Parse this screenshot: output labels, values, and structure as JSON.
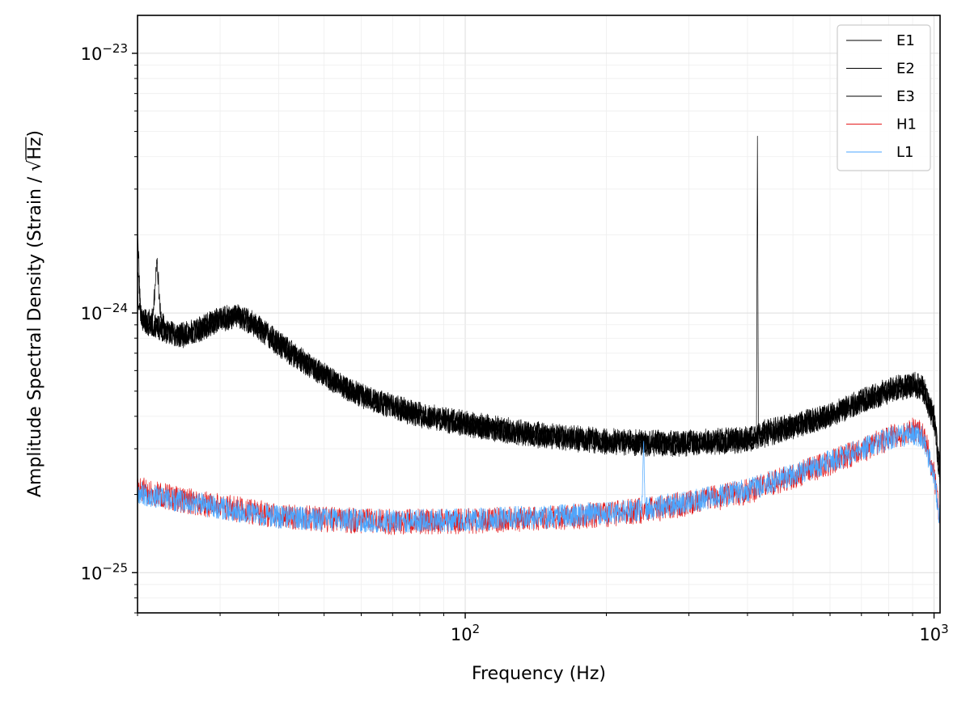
{
  "chart_data": {
    "type": "line",
    "title": "",
    "xlabel": "Frequency (Hz)",
    "ylabel": "Amplitude Spectral Density (Strain / √Hz)",
    "ylabel_parts": {
      "before": "Amplitude Spectral Density (Strain / ",
      "root": "√",
      "radicand": "Hz",
      "after": ")"
    },
    "x_scale": "log",
    "y_scale": "log",
    "xlim": [
      20,
      1030
    ],
    "ylim": [
      7e-26,
      1.4e-23
    ],
    "grid": true,
    "legend_position": "top-right",
    "x_ticks": [
      {
        "value": 100,
        "base": "10",
        "exp": "2"
      },
      {
        "value": 1000,
        "base": "10",
        "exp": "3"
      }
    ],
    "y_ticks": [
      {
        "value": 1e-25,
        "base": "10",
        "exp": "−25"
      },
      {
        "value": 1e-24,
        "base": "10",
        "exp": "−24"
      },
      {
        "value": 1e-23,
        "base": "10",
        "exp": "−23"
      }
    ],
    "series": [
      {
        "name": "E1",
        "color": "#000000",
        "jitter": 0.045,
        "seed": 11,
        "points": [
          [
            20,
            2.2e-24
          ],
          [
            20.3,
            1e-24
          ],
          [
            21,
            9.2e-25
          ],
          [
            21.6,
            1e-24
          ],
          [
            22,
            1.65e-24
          ],
          [
            22.4,
            9.5e-25
          ],
          [
            23,
            8.6e-25
          ],
          [
            25,
            8.3e-25
          ],
          [
            27,
            8.7e-25
          ],
          [
            30,
            9.6e-25
          ],
          [
            33,
            9.8e-25
          ],
          [
            36,
            9e-25
          ],
          [
            40,
            7.7e-25
          ],
          [
            45,
            6.6e-25
          ],
          [
            50,
            5.8e-25
          ],
          [
            60,
            4.85e-25
          ],
          [
            70,
            4.4e-25
          ],
          [
            80,
            4.1e-25
          ],
          [
            100,
            3.8e-25
          ],
          [
            120,
            3.6e-25
          ],
          [
            150,
            3.4e-25
          ],
          [
            200,
            3.25e-25
          ],
          [
            250,
            3.2e-25
          ],
          [
            300,
            3.2e-25
          ],
          [
            400,
            3.3e-25
          ],
          [
            418,
            3.35e-25
          ],
          [
            420,
            4.8e-24
          ],
          [
            422,
            3.5e-25
          ],
          [
            500,
            3.7e-25
          ],
          [
            600,
            4.1e-25
          ],
          [
            700,
            4.6e-25
          ],
          [
            800,
            5.1e-25
          ],
          [
            900,
            5.4e-25
          ],
          [
            950,
            5.2e-25
          ],
          [
            1000,
            4e-25
          ],
          [
            1030,
            2.5e-25
          ]
        ]
      },
      {
        "name": "E2",
        "color": "#000000",
        "jitter": 0.045,
        "seed": 23,
        "points": [
          [
            20,
            1.5e-24
          ],
          [
            20.4,
            9.5e-25
          ],
          [
            21,
            9e-25
          ],
          [
            22,
            8.9e-25
          ],
          [
            23,
            8.5e-25
          ],
          [
            25,
            8.2e-25
          ],
          [
            27,
            8.5e-25
          ],
          [
            30,
            9.4e-25
          ],
          [
            33,
            9.6e-25
          ],
          [
            36,
            8.9e-25
          ],
          [
            40,
            7.6e-25
          ],
          [
            45,
            6.5e-25
          ],
          [
            50,
            5.75e-25
          ],
          [
            60,
            4.8e-25
          ],
          [
            70,
            4.35e-25
          ],
          [
            80,
            4.05e-25
          ],
          [
            100,
            3.75e-25
          ],
          [
            120,
            3.55e-25
          ],
          [
            150,
            3.35e-25
          ],
          [
            200,
            3.2e-25
          ],
          [
            250,
            3.15e-25
          ],
          [
            300,
            3.15e-25
          ],
          [
            400,
            3.25e-25
          ],
          [
            500,
            3.65e-25
          ],
          [
            600,
            4.05e-25
          ],
          [
            700,
            4.55e-25
          ],
          [
            800,
            5e-25
          ],
          [
            900,
            5.3e-25
          ],
          [
            950,
            5.1e-25
          ],
          [
            1000,
            3.9e-25
          ],
          [
            1030,
            2.4e-25
          ]
        ]
      },
      {
        "name": "E3",
        "color": "#000000",
        "jitter": 0.045,
        "seed": 37,
        "points": [
          [
            20,
            1.2e-24
          ],
          [
            20.4,
            9.6e-25
          ],
          [
            21,
            9.1e-25
          ],
          [
            22,
            8.7e-25
          ],
          [
            23,
            8.4e-25
          ],
          [
            25,
            8.1e-25
          ],
          [
            27,
            8.6e-25
          ],
          [
            30,
            9.5e-25
          ],
          [
            33,
            9.7e-25
          ],
          [
            36,
            8.8e-25
          ],
          [
            40,
            7.5e-25
          ],
          [
            45,
            6.45e-25
          ],
          [
            50,
            5.7e-25
          ],
          [
            60,
            4.75e-25
          ],
          [
            70,
            4.3e-25
          ],
          [
            80,
            4e-25
          ],
          [
            100,
            3.7e-25
          ],
          [
            120,
            3.5e-25
          ],
          [
            150,
            3.3e-25
          ],
          [
            200,
            3.15e-25
          ],
          [
            250,
            3.1e-25
          ],
          [
            300,
            3.1e-25
          ],
          [
            400,
            3.2e-25
          ],
          [
            500,
            3.6e-25
          ],
          [
            600,
            4e-25
          ],
          [
            700,
            4.5e-25
          ],
          [
            800,
            4.95e-25
          ],
          [
            900,
            5.25e-25
          ],
          [
            950,
            5e-25
          ],
          [
            1000,
            3.8e-25
          ],
          [
            1030,
            2.3e-25
          ]
        ]
      },
      {
        "name": "H1",
        "color": "#e41a1c",
        "jitter": 0.05,
        "seed": 51,
        "points": [
          [
            20,
            2.1e-25
          ],
          [
            22,
            2e-25
          ],
          [
            25,
            1.9e-25
          ],
          [
            30,
            1.8e-25
          ],
          [
            40,
            1.65e-25
          ],
          [
            50,
            1.6e-25
          ],
          [
            70,
            1.57e-25
          ],
          [
            100,
            1.58e-25
          ],
          [
            150,
            1.62e-25
          ],
          [
            200,
            1.68e-25
          ],
          [
            250,
            1.75e-25
          ],
          [
            300,
            1.85e-25
          ],
          [
            400,
            2.05e-25
          ],
          [
            500,
            2.35e-25
          ],
          [
            600,
            2.65e-25
          ],
          [
            700,
            2.95e-25
          ],
          [
            800,
            3.3e-25
          ],
          [
            900,
            3.55e-25
          ],
          [
            950,
            3.4e-25
          ],
          [
            1000,
            2.4e-25
          ],
          [
            1030,
            1.6e-25
          ]
        ]
      },
      {
        "name": "L1",
        "color": "#4ba6ff",
        "jitter": 0.045,
        "seed": 67,
        "points": [
          [
            20,
            2.05e-25
          ],
          [
            22,
            1.95e-25
          ],
          [
            25,
            1.88e-25
          ],
          [
            30,
            1.78e-25
          ],
          [
            40,
            1.64e-25
          ],
          [
            50,
            1.6e-25
          ],
          [
            70,
            1.58e-25
          ],
          [
            100,
            1.6e-25
          ],
          [
            150,
            1.64e-25
          ],
          [
            200,
            1.7e-25
          ],
          [
            238,
            1.74e-25
          ],
          [
            240,
            3.3e-25
          ],
          [
            242,
            1.76e-25
          ],
          [
            300,
            1.87e-25
          ],
          [
            400,
            2.08e-25
          ],
          [
            500,
            2.38e-25
          ],
          [
            600,
            2.68e-25
          ],
          [
            700,
            2.98e-25
          ],
          [
            800,
            3.28e-25
          ],
          [
            900,
            3.45e-25
          ],
          [
            950,
            3.3e-25
          ],
          [
            1000,
            2.3e-25
          ],
          [
            1030,
            1.6e-25
          ]
        ]
      }
    ]
  }
}
